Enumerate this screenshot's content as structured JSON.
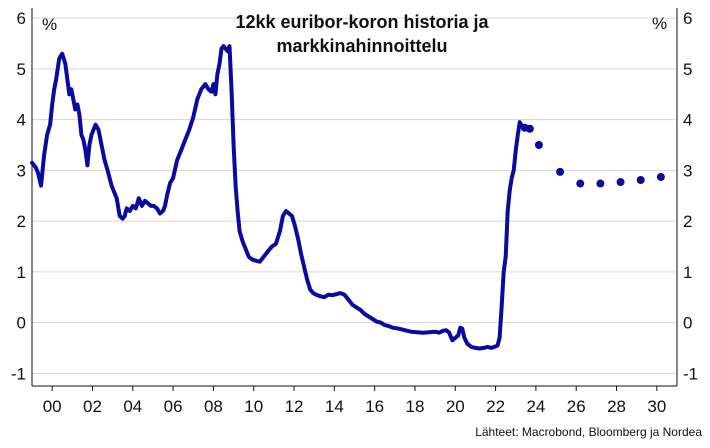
{
  "chart_data": {
    "type": "line",
    "title": "12kk euribor-koron historia ja markkinahinnoittelu",
    "title_lines": [
      "12kk euribor-koron historia ja",
      "markkinahinnoittelu"
    ],
    "unit_label_left": "%",
    "unit_label_right": "%",
    "source": "Lähteet: Macrobond, Bloomberg ja Nordea",
    "xlim": [
      1999,
      2031
    ],
    "ylim": [
      -1.25,
      6.2
    ],
    "x_ticks": [
      2000,
      2002,
      2004,
      2006,
      2008,
      2010,
      2012,
      2014,
      2016,
      2018,
      2020,
      2022,
      2024,
      2026,
      2028,
      2030
    ],
    "x_tick_labels": [
      "00",
      "02",
      "04",
      "06",
      "08",
      "10",
      "12",
      "14",
      "16",
      "18",
      "20",
      "22",
      "24",
      "26",
      "28",
      "30"
    ],
    "y_ticks": [
      -1,
      0,
      1,
      2,
      3,
      4,
      5,
      6
    ],
    "y_tick_labels": [
      "-1",
      "0",
      "1",
      "2",
      "3",
      "4",
      "5",
      "6"
    ],
    "grid": true,
    "colors": {
      "series": "#0a0a9e",
      "grid": "#d6d6d6",
      "axis": "#111111"
    },
    "series": [
      {
        "name": "12kk euribor",
        "style": "line",
        "x": [
          1999.0,
          1999.1,
          1999.2,
          1999.3,
          1999.45,
          1999.6,
          1999.75,
          1999.9,
          2000.0,
          2000.1,
          2000.2,
          2000.35,
          2000.5,
          2000.65,
          2000.75,
          2000.85,
          2000.95,
          2001.05,
          2001.15,
          2001.25,
          2001.35,
          2001.45,
          2001.55,
          2001.65,
          2001.75,
          2001.85,
          2001.95,
          2002.05,
          2002.15,
          2002.3,
          2002.45,
          2002.6,
          2002.75,
          2002.85,
          2002.95,
          2003.05,
          2003.2,
          2003.35,
          2003.5,
          2003.6,
          2003.7,
          2003.85,
          2004.0,
          2004.15,
          2004.3,
          2004.45,
          2004.6,
          2004.75,
          2004.9,
          2005.05,
          2005.2,
          2005.35,
          2005.5,
          2005.6,
          2005.7,
          2005.85,
          2006.0,
          2006.2,
          2006.4,
          2006.6,
          2006.8,
          2007.0,
          2007.2,
          2007.4,
          2007.6,
          2007.75,
          2007.9,
          2008.0,
          2008.1,
          2008.2,
          2008.3,
          2008.4,
          2008.5,
          2008.6,
          2008.7,
          2008.8,
          2008.9,
          2009.0,
          2009.1,
          2009.2,
          2009.3,
          2009.45,
          2009.6,
          2009.75,
          2009.9,
          2010.1,
          2010.3,
          2010.5,
          2010.7,
          2010.9,
          2011.1,
          2011.3,
          2011.45,
          2011.6,
          2011.75,
          2011.9,
          2012.05,
          2012.2,
          2012.35,
          2012.5,
          2012.65,
          2012.8,
          2012.95,
          2013.1,
          2013.3,
          2013.5,
          2013.7,
          2013.9,
          2014.1,
          2014.3,
          2014.5,
          2014.7,
          2014.9,
          2015.1,
          2015.3,
          2015.5,
          2015.7,
          2015.9,
          2016.1,
          2016.3,
          2016.5,
          2016.7,
          2016.9,
          2017.2,
          2017.5,
          2017.8,
          2018.1,
          2018.4,
          2018.7,
          2019.0,
          2019.2,
          2019.4,
          2019.55,
          2019.7,
          2019.85,
          2020.0,
          2020.15,
          2020.25,
          2020.35,
          2020.45,
          2020.6,
          2020.8,
          2021.0,
          2021.2,
          2021.4,
          2021.6,
          2021.8,
          2022.0,
          2022.1,
          2022.2,
          2022.3,
          2022.4,
          2022.5,
          2022.6,
          2022.7,
          2022.8,
          2022.9,
          2023.0,
          2023.1,
          2023.2,
          2023.3,
          2023.35
        ],
        "values": [
          3.15,
          3.1,
          3.05,
          2.95,
          2.7,
          3.3,
          3.7,
          3.9,
          4.3,
          4.6,
          4.8,
          5.2,
          5.3,
          5.1,
          4.8,
          4.5,
          4.6,
          4.4,
          4.2,
          4.3,
          4.1,
          3.7,
          3.6,
          3.4,
          3.1,
          3.5,
          3.7,
          3.8,
          3.9,
          3.8,
          3.5,
          3.2,
          3.0,
          2.85,
          2.7,
          2.6,
          2.45,
          2.1,
          2.05,
          2.1,
          2.25,
          2.2,
          2.3,
          2.25,
          2.45,
          2.3,
          2.4,
          2.35,
          2.3,
          2.3,
          2.25,
          2.15,
          2.2,
          2.3,
          2.5,
          2.75,
          2.85,
          3.2,
          3.4,
          3.6,
          3.8,
          4.05,
          4.4,
          4.6,
          4.7,
          4.6,
          4.55,
          4.7,
          4.5,
          4.9,
          5.1,
          5.4,
          5.45,
          5.4,
          5.35,
          5.45,
          4.6,
          3.5,
          2.7,
          2.2,
          1.8,
          1.6,
          1.45,
          1.3,
          1.25,
          1.22,
          1.2,
          1.3,
          1.4,
          1.5,
          1.55,
          1.8,
          2.1,
          2.2,
          2.15,
          2.1,
          1.9,
          1.65,
          1.35,
          1.1,
          0.85,
          0.65,
          0.58,
          0.55,
          0.52,
          0.5,
          0.55,
          0.54,
          0.56,
          0.58,
          0.55,
          0.45,
          0.35,
          0.3,
          0.25,
          0.17,
          0.12,
          0.07,
          0.02,
          0.0,
          -0.05,
          -0.07,
          -0.1,
          -0.12,
          -0.15,
          -0.18,
          -0.19,
          -0.2,
          -0.19,
          -0.18,
          -0.2,
          -0.16,
          -0.15,
          -0.2,
          -0.35,
          -0.3,
          -0.25,
          -0.1,
          -0.12,
          -0.3,
          -0.42,
          -0.48,
          -0.5,
          -0.51,
          -0.5,
          -0.48,
          -0.5,
          -0.47,
          -0.45,
          -0.3,
          0.3,
          1.0,
          1.3,
          2.2,
          2.6,
          2.85,
          3.0,
          3.4,
          3.7,
          3.95,
          3.88,
          3.86
        ]
      },
      {
        "name": "Markkinahinnoittelu",
        "style": "dots",
        "x": [
          2023.45,
          2023.7,
          2024.15,
          2025.2,
          2026.2,
          2027.2,
          2028.2,
          2029.2,
          2030.2
        ],
        "values": [
          3.84,
          3.82,
          3.5,
          2.97,
          2.74,
          2.74,
          2.77,
          2.81,
          2.87
        ]
      }
    ]
  }
}
